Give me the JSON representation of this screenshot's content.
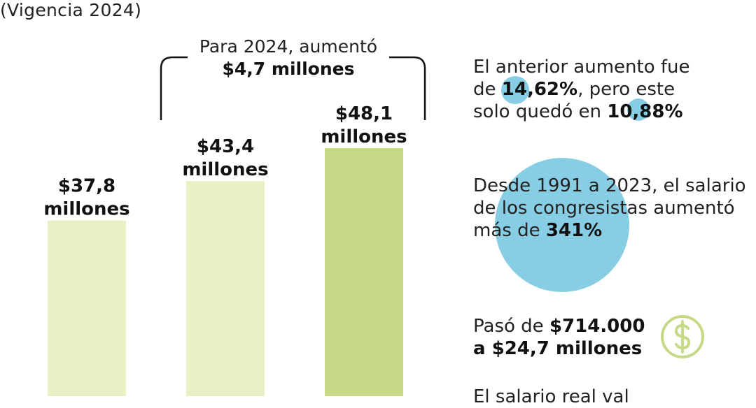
{
  "subtitle": "(Vigencia 2024)",
  "colors": {
    "bar_light": "#ebf0c4",
    "bar_dark": "#c6d986",
    "bubble": "#87cde3",
    "icon": "#c6d986"
  },
  "chart_data": {
    "type": "bar",
    "categories": [
      "",
      "",
      ""
    ],
    "values": [
      37.8,
      43.4,
      48.1
    ],
    "unit": "millones",
    "data_labels": [
      {
        "line1": "$37,8",
        "line2": "millones"
      },
      {
        "line1": "$43,4",
        "line2": "millones"
      },
      {
        "line1": "$48,1",
        "line2": "millones"
      }
    ],
    "annotation": {
      "line1": "Para 2024, aumentó",
      "line2": "$4,7 millones"
    }
  },
  "facts": [
    {
      "lines": [
        {
          "pre": "El anterior aumento fue",
          "bold": "",
          "post": ""
        },
        {
          "pre": "de ",
          "bold": "14,62%",
          "post": ", pero este"
        },
        {
          "pre": "solo quedó en ",
          "bold": "10,88%",
          "post": ""
        }
      ],
      "bubbles": [
        14.62,
        10.88
      ]
    },
    {
      "lines": [
        {
          "pre": "Desde 1991 a 2023, el salario",
          "bold": "",
          "post": ""
        },
        {
          "pre": "de los congresistas aumentó",
          "bold": "",
          "post": ""
        },
        {
          "pre": "más de ",
          "bold": "341%",
          "post": ""
        }
      ],
      "bubble": 341
    },
    {
      "lines": [
        {
          "pre": "Pasó de ",
          "bold": "$714.000",
          "post": ""
        },
        {
          "pre": "",
          "bold": "a $24,7 millones",
          "post": ""
        }
      ],
      "icon": "dollar-coin-icon"
    },
    {
      "lines": [
        {
          "pre": "El salario real val",
          "bold": "",
          "post": ""
        }
      ]
    }
  ]
}
